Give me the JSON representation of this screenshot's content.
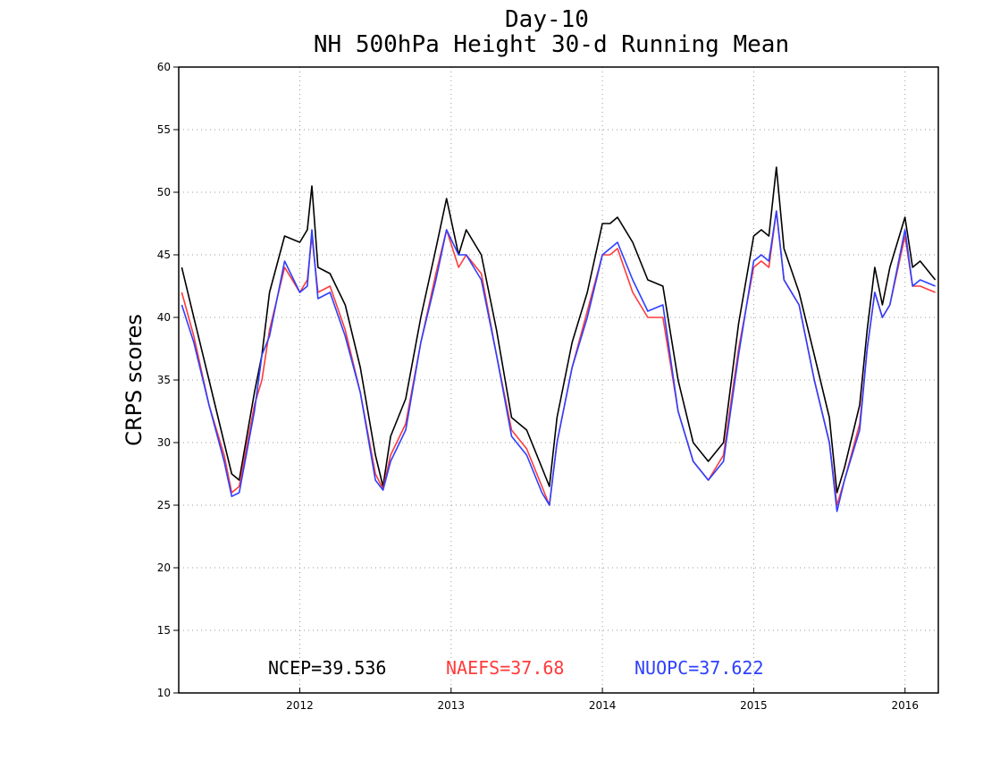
{
  "chart_data": {
    "type": "line",
    "title": "Day-10",
    "subtitle": "NH 500hPa Height 30-d Running Mean",
    "xlabel": "",
    "ylabel": "CRPS scores",
    "xlim": [
      2011.2,
      2016.22
    ],
    "ylim": [
      10,
      60
    ],
    "yticks": [
      10,
      15,
      20,
      25,
      30,
      35,
      40,
      45,
      50,
      55,
      60
    ],
    "ytick_labels": [
      "10",
      "15",
      "20",
      "25",
      "30",
      "35",
      "40",
      "45",
      "50",
      "55",
      "60"
    ],
    "xticks": [
      2012,
      2013,
      2014,
      2015,
      2016
    ],
    "xtick_labels": [
      "2012",
      "2013",
      "2014",
      "2015",
      "2016"
    ],
    "grid": true,
    "series": [
      {
        "name": "NCEP",
        "color": "#000000",
        "x": [
          2011.22,
          2011.3,
          2011.4,
          2011.5,
          2011.55,
          2011.6,
          2011.7,
          2011.75,
          2011.8,
          2011.9,
          2012.0,
          2012.05,
          2012.08,
          2012.12,
          2012.2,
          2012.3,
          2012.4,
          2012.5,
          2012.55,
          2012.6,
          2012.7,
          2012.8,
          2012.9,
          2012.97,
          2013.05,
          2013.1,
          2013.2,
          2013.3,
          2013.4,
          2013.5,
          2013.6,
          2013.65,
          2013.7,
          2013.8,
          2013.9,
          2014.0,
          2014.05,
          2014.1,
          2014.2,
          2014.3,
          2014.4,
          2014.5,
          2014.6,
          2014.7,
          2014.8,
          2014.9,
          2015.0,
          2015.05,
          2015.1,
          2015.15,
          2015.2,
          2015.3,
          2015.4,
          2015.5,
          2015.55,
          2015.6,
          2015.7,
          2015.75,
          2015.8,
          2015.85,
          2015.9,
          2016.0,
          2016.05,
          2016.1,
          2016.2
        ],
        "values": [
          44.0,
          40.0,
          35.0,
          30.0,
          27.5,
          27.0,
          34.0,
          37.0,
          42.0,
          46.5,
          46.0,
          47.0,
          50.5,
          44.0,
          43.5,
          41.0,
          36.0,
          29.0,
          26.5,
          30.5,
          33.5,
          40.0,
          45.5,
          49.5,
          45.0,
          47.0,
          45.0,
          39.0,
          32.0,
          31.0,
          28.0,
          26.5,
          32.0,
          38.0,
          42.0,
          47.5,
          47.5,
          48.0,
          46.0,
          43.0,
          42.5,
          35.0,
          30.0,
          28.5,
          30.0,
          39.5,
          46.5,
          47.0,
          46.5,
          52.0,
          45.5,
          42.0,
          37.0,
          32.0,
          26.0,
          28.0,
          33.0,
          39.0,
          44.0,
          41.0,
          44.0,
          48.0,
          44.0,
          44.5,
          43.0
        ]
      },
      {
        "name": "NAEFS",
        "color": "#ff3b3b",
        "x": [
          2011.22,
          2011.3,
          2011.4,
          2011.5,
          2011.55,
          2011.6,
          2011.7,
          2011.75,
          2011.8,
          2011.9,
          2012.0,
          2012.05,
          2012.08,
          2012.12,
          2012.2,
          2012.3,
          2012.4,
          2012.5,
          2012.55,
          2012.6,
          2012.7,
          2012.8,
          2012.9,
          2012.97,
          2013.05,
          2013.1,
          2013.2,
          2013.3,
          2013.4,
          2013.5,
          2013.6,
          2013.65,
          2013.7,
          2013.8,
          2013.9,
          2014.0,
          2014.05,
          2014.1,
          2014.2,
          2014.3,
          2014.4,
          2014.5,
          2014.6,
          2014.7,
          2014.8,
          2014.9,
          2015.0,
          2015.05,
          2015.1,
          2015.15,
          2015.2,
          2015.3,
          2015.4,
          2015.5,
          2015.55,
          2015.6,
          2015.7,
          2015.75,
          2015.8,
          2015.85,
          2015.9,
          2016.0,
          2016.05,
          2016.1,
          2016.2
        ],
        "values": [
          42.0,
          38.5,
          33.0,
          29.0,
          26.0,
          26.5,
          33.0,
          35.0,
          39.0,
          44.0,
          42.0,
          43.0,
          46.5,
          42.0,
          42.5,
          39.0,
          34.0,
          27.5,
          26.3,
          29.0,
          31.5,
          38.0,
          43.5,
          47.0,
          44.0,
          45.0,
          43.5,
          37.0,
          31.0,
          29.5,
          26.5,
          25.0,
          30.0,
          36.0,
          40.5,
          45.0,
          45.0,
          45.5,
          42.0,
          40.0,
          40.0,
          32.5,
          28.5,
          27.0,
          29.0,
          37.5,
          44.0,
          44.5,
          44.0,
          48.5,
          43.0,
          41.0,
          35.0,
          30.0,
          25.0,
          27.0,
          31.5,
          37.5,
          42.0,
          40.0,
          41.0,
          46.5,
          42.5,
          42.5,
          42.0
        ]
      },
      {
        "name": "NUOPC",
        "color": "#2d3fff",
        "x": [
          2011.22,
          2011.3,
          2011.4,
          2011.5,
          2011.55,
          2011.6,
          2011.7,
          2011.75,
          2011.8,
          2011.9,
          2012.0,
          2012.05,
          2012.08,
          2012.12,
          2012.2,
          2012.3,
          2012.4,
          2012.5,
          2012.55,
          2012.6,
          2012.7,
          2012.8,
          2012.9,
          2012.97,
          2013.05,
          2013.1,
          2013.2,
          2013.3,
          2013.4,
          2013.5,
          2013.6,
          2013.65,
          2013.7,
          2013.8,
          2013.9,
          2014.0,
          2014.05,
          2014.1,
          2014.2,
          2014.3,
          2014.4,
          2014.5,
          2014.6,
          2014.7,
          2014.8,
          2014.9,
          2015.0,
          2015.05,
          2015.1,
          2015.15,
          2015.2,
          2015.3,
          2015.4,
          2015.5,
          2015.55,
          2015.6,
          2015.7,
          2015.75,
          2015.8,
          2015.85,
          2015.9,
          2016.0,
          2016.05,
          2016.1,
          2016.2
        ],
        "values": [
          41.0,
          38.0,
          33.0,
          28.5,
          25.7,
          26.0,
          32.5,
          37.0,
          38.5,
          44.5,
          42.0,
          42.5,
          47.0,
          41.5,
          42.0,
          38.5,
          34.0,
          27.0,
          26.2,
          28.5,
          31.0,
          38.0,
          43.0,
          47.0,
          45.0,
          45.0,
          43.0,
          37.0,
          30.5,
          29.0,
          26.0,
          25.0,
          30.0,
          36.0,
          40.0,
          45.0,
          45.5,
          46.0,
          43.0,
          40.5,
          41.0,
          32.5,
          28.5,
          27.0,
          28.5,
          37.0,
          44.5,
          45.0,
          44.5,
          48.5,
          43.0,
          41.0,
          35.0,
          30.0,
          24.5,
          27.0,
          31.0,
          37.5,
          42.0,
          40.0,
          41.0,
          47.0,
          42.5,
          43.0,
          42.5
        ]
      }
    ]
  },
  "stats": {
    "ncep": {
      "label": "NCEP=39.536",
      "color": "#000000"
    },
    "naefs": {
      "label": "NAEFS=37.68",
      "color": "#ff3b3b"
    },
    "nuopc": {
      "label": "NUOPC=37.622",
      "color": "#2d3fff"
    }
  }
}
